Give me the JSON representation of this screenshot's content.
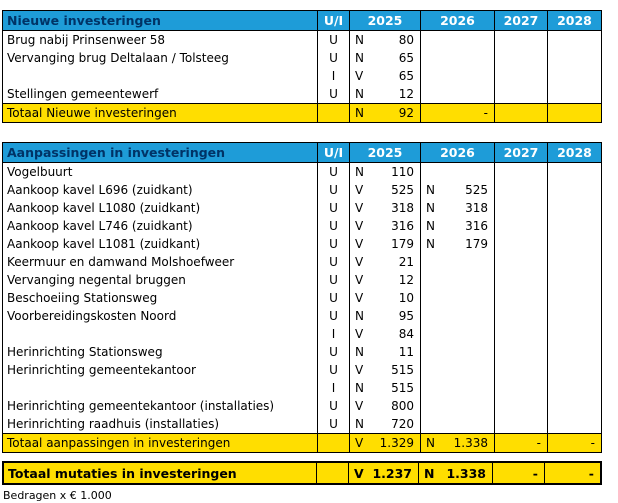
{
  "columns": {
    "ui_label": "U/I",
    "years": [
      "2025",
      "2026",
      "2027",
      "2028"
    ]
  },
  "colors": {
    "header_bg": "#1E9CD8",
    "header_title_text": "#003366",
    "header_year_text": "#FFFFFF",
    "total_row_bg": "#FFDE00",
    "border": "#000000"
  },
  "sections": [
    {
      "title": "Nieuwe investeringen",
      "rows": [
        {
          "desc": "Brug nabij Prinsenweer 58",
          "ui": "U",
          "cells": [
            {
              "l": "N",
              "v": "80"
            },
            null,
            null,
            null
          ]
        },
        {
          "desc": "Vervanging brug Deltalaan / Tolsteeg",
          "ui": "U",
          "cells": [
            {
              "l": "N",
              "v": "65"
            },
            null,
            null,
            null
          ]
        },
        {
          "desc": "",
          "ui": "I",
          "cells": [
            {
              "l": "V",
              "v": "65"
            },
            null,
            null,
            null
          ]
        },
        {
          "desc": "Stellingen gemeentewerf",
          "ui": "U",
          "cells": [
            {
              "l": "N",
              "v": "12"
            },
            null,
            null,
            null
          ]
        }
      ],
      "total": {
        "label": "Totaal Nieuwe investeringen",
        "cells": [
          {
            "l": "N",
            "v": "92"
          },
          {
            "l": "",
            "v": "-"
          },
          null,
          null
        ]
      }
    },
    {
      "title": "Aanpassingen in investeringen",
      "rows": [
        {
          "desc": "Vogelbuurt",
          "ui": "U",
          "cells": [
            {
              "l": "N",
              "v": "110"
            },
            null,
            null,
            null
          ]
        },
        {
          "desc": "Aankoop kavel L696 (zuidkant)",
          "ui": "U",
          "cells": [
            {
              "l": "V",
              "v": "525"
            },
            {
              "l": "N",
              "v": "525"
            },
            null,
            null
          ]
        },
        {
          "desc": "Aankoop kavel L1080 (zuidkant)",
          "ui": "U",
          "cells": [
            {
              "l": "V",
              "v": "318"
            },
            {
              "l": "N",
              "v": "318"
            },
            null,
            null
          ]
        },
        {
          "desc": "Aankoop kavel L746 (zuidkant)",
          "ui": "U",
          "cells": [
            {
              "l": "V",
              "v": "316"
            },
            {
              "l": "N",
              "v": "316"
            },
            null,
            null
          ]
        },
        {
          "desc": "Aankoop kavel L1081 (zuidkant)",
          "ui": "U",
          "cells": [
            {
              "l": "V",
              "v": "179"
            },
            {
              "l": "N",
              "v": "179"
            },
            null,
            null
          ]
        },
        {
          "desc": "Keermuur en damwand Molshoefweer",
          "ui": "U",
          "cells": [
            {
              "l": "V",
              "v": "21"
            },
            null,
            null,
            null
          ]
        },
        {
          "desc": "Vervanging negental bruggen",
          "ui": "U",
          "cells": [
            {
              "l": "V",
              "v": "12"
            },
            null,
            null,
            null
          ]
        },
        {
          "desc": "Beschoeiing Stationsweg",
          "ui": "U",
          "cells": [
            {
              "l": "V",
              "v": "10"
            },
            null,
            null,
            null
          ]
        },
        {
          "desc": "Voorbereidingskosten Noord",
          "ui": "U",
          "cells": [
            {
              "l": "N",
              "v": "95"
            },
            null,
            null,
            null
          ]
        },
        {
          "desc": "",
          "ui": "I",
          "cells": [
            {
              "l": "V",
              "v": "84"
            },
            null,
            null,
            null
          ]
        },
        {
          "desc": "Herinrichting Stationsweg",
          "ui": "U",
          "cells": [
            {
              "l": "N",
              "v": "11"
            },
            null,
            null,
            null
          ]
        },
        {
          "desc": "Herinrichting gemeentekantoor",
          "ui": "U",
          "cells": [
            {
              "l": "V",
              "v": "515"
            },
            null,
            null,
            null
          ]
        },
        {
          "desc": "",
          "ui": "I",
          "cells": [
            {
              "l": "N",
              "v": "515"
            },
            null,
            null,
            null
          ]
        },
        {
          "desc": "Herinrichting gemeentekantoor (installaties)",
          "ui": "U",
          "cells": [
            {
              "l": "V",
              "v": "800"
            },
            null,
            null,
            null
          ]
        },
        {
          "desc": "Herinrichting raadhuis (installaties)",
          "ui": "U",
          "cells": [
            {
              "l": "N",
              "v": "720"
            },
            null,
            null,
            null
          ]
        }
      ],
      "total": {
        "label": "Totaal aanpassingen in investeringen",
        "cells": [
          {
            "l": "V",
            "v": "1.329"
          },
          {
            "l": "N",
            "v": "1.338"
          },
          {
            "l": "",
            "v": "-"
          },
          {
            "l": "",
            "v": "-"
          }
        ]
      }
    }
  ],
  "grand_total": {
    "label": "Totaal mutaties in investeringen",
    "cells": [
      {
        "l": "V",
        "v": "1.237"
      },
      {
        "l": "N",
        "v": "1.338"
      },
      {
        "l": "",
        "v": "-"
      },
      {
        "l": "",
        "v": "-"
      }
    ]
  },
  "footnote": "Bedragen x € 1.000"
}
